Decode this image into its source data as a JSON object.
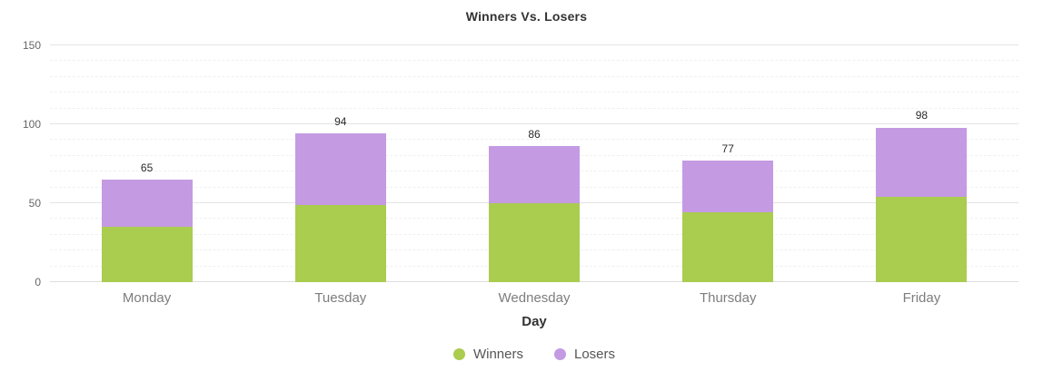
{
  "chart_data": {
    "type": "bar",
    "stacked": true,
    "title": "Winners Vs. Losers",
    "xlabel": "Day",
    "ylabel": "",
    "categories": [
      "Monday",
      "Tuesday",
      "Wednesday",
      "Thursday",
      "Friday"
    ],
    "series": [
      {
        "name": "Winners",
        "color": "#aacc4f",
        "values": [
          35,
          49,
          50,
          44,
          54
        ]
      },
      {
        "name": "Losers",
        "color": "#c49ae3",
        "values": [
          30,
          45,
          36,
          33,
          44
        ]
      }
    ],
    "totals": [
      65,
      94,
      86,
      77,
      98
    ],
    "y_axis": {
      "min": 0,
      "max": 150,
      "major_ticks": [
        0,
        50,
        100,
        150
      ],
      "minor_step": 10
    },
    "grid": true,
    "legend_position": "bottom"
  },
  "colors": {
    "background": "#ffffff",
    "title_text": "#333333",
    "axis_tick_text": "#666666",
    "category_text": "#7d7d7d",
    "legend_text": "#555555",
    "major_gridline": "#e4e4e4",
    "minor_gridline": "#f0f0f0",
    "winners": "#aacc4f",
    "losers": "#c49ae3"
  }
}
